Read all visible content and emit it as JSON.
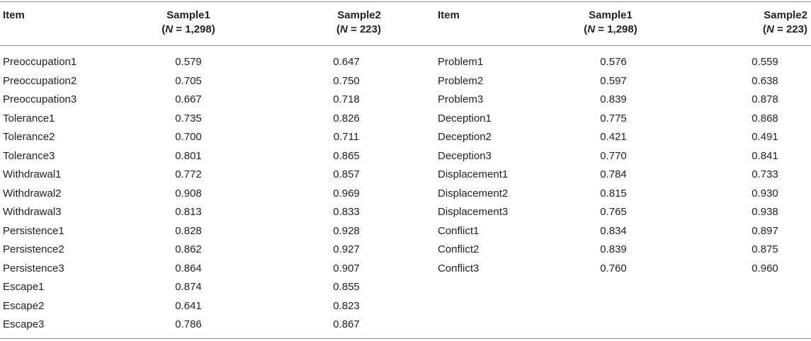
{
  "headers": {
    "item_left": "Item",
    "sample1_left_title": "Sample1",
    "sample1_left_n": "(N = 1,298)",
    "sample2_left_title": "Sample2",
    "sample2_left_n": "(N = 223)",
    "item_right": "Item",
    "sample1_right_title": "Sample1",
    "sample1_right_n": "(N = 1,298)",
    "sample2_right_title": "Sample2",
    "sample2_right_n": "(N = 223)"
  },
  "left_rows": [
    {
      "item": "Preoccupation1",
      "s1": "0.579",
      "s2": "0.647"
    },
    {
      "item": "Preoccupation2",
      "s1": "0.705",
      "s2": "0.750"
    },
    {
      "item": "Preoccupation3",
      "s1": "0.667",
      "s2": "0.718"
    },
    {
      "item": "Tolerance1",
      "s1": "0.735",
      "s2": "0.826"
    },
    {
      "item": "Tolerance2",
      "s1": "0.700",
      "s2": "0.711"
    },
    {
      "item": "Tolerance3",
      "s1": "0.801",
      "s2": "0.865"
    },
    {
      "item": "Withdrawal1",
      "s1": "0.772",
      "s2": "0.857"
    },
    {
      "item": "Withdrawal2",
      "s1": "0.908",
      "s2": "0.969"
    },
    {
      "item": "Withdrawal3",
      "s1": "0.813",
      "s2": "0.833"
    },
    {
      "item": "Persistence1",
      "s1": "0.828",
      "s2": "0.928"
    },
    {
      "item": "Persistence2",
      "s1": "0.862",
      "s2": "0.927"
    },
    {
      "item": "Persistence3",
      "s1": "0.864",
      "s2": "0.907"
    },
    {
      "item": "Escape1",
      "s1": "0.874",
      "s2": "0.855"
    },
    {
      "item": "Escape2",
      "s1": "0.641",
      "s2": "0.823"
    },
    {
      "item": "Escape3",
      "s1": "0.786",
      "s2": "0.867"
    }
  ],
  "right_rows": [
    {
      "item": "Problem1",
      "s1": "0.576",
      "s2": "0.559"
    },
    {
      "item": "Problem2",
      "s1": "0.597",
      "s2": "0.638"
    },
    {
      "item": "Problem3",
      "s1": "0.839",
      "s2": "0.878"
    },
    {
      "item": "Deception1",
      "s1": "0.775",
      "s2": "0.868"
    },
    {
      "item": "Deception2",
      "s1": "0.421",
      "s2": "0.491"
    },
    {
      "item": "Deception3",
      "s1": "0.770",
      "s2": "0.841"
    },
    {
      "item": "Displacement1",
      "s1": "0.784",
      "s2": "0.733"
    },
    {
      "item": "Displacement2",
      "s1": "0.815",
      "s2": "0.930"
    },
    {
      "item": "Displacement3",
      "s1": "0.765",
      "s2": "0.938"
    },
    {
      "item": "Conflict1",
      "s1": "0.834",
      "s2": "0.897"
    },
    {
      "item": "Conflict2",
      "s1": "0.839",
      "s2": "0.875"
    },
    {
      "item": "Conflict3",
      "s1": "0.760",
      "s2": "0.960"
    }
  ]
}
